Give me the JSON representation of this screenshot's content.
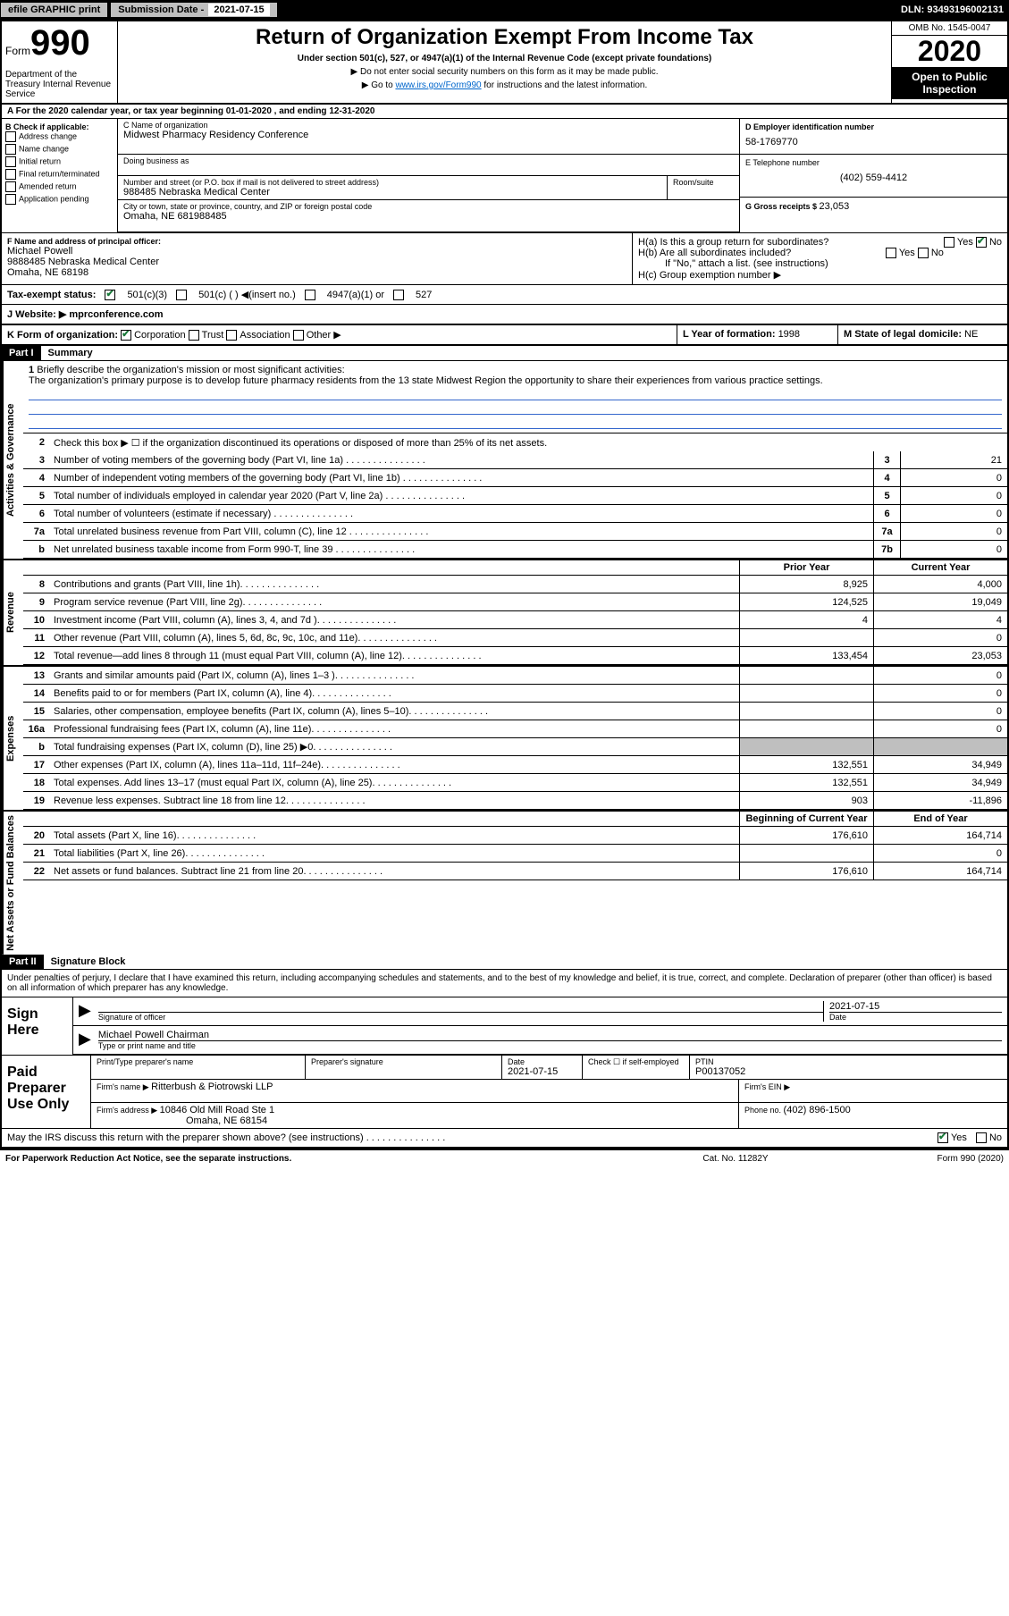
{
  "topbar": {
    "efile": "efile GRAPHIC print",
    "subdate_label": "Submission Date - ",
    "subdate": "2021-07-15",
    "dln": "DLN: 93493196002131"
  },
  "header": {
    "form_word": "Form",
    "form_num": "990",
    "dept": "Department of the Treasury\nInternal Revenue Service",
    "title": "Return of Organization Exempt From Income Tax",
    "sub": "Under section 501(c), 527, or 4947(a)(1) of the Internal Revenue Code (except private foundations)",
    "note1": "▶ Do not enter social security numbers on this form as it may be made public.",
    "note2_pre": "▶ Go to ",
    "note2_link": "www.irs.gov/Form990",
    "note2_post": " for instructions and the latest information.",
    "omb": "OMB No. 1545-0047",
    "year": "2020",
    "otp": "Open to Public Inspection"
  },
  "period": "A For the 2020 calendar year, or tax year beginning 01-01-2020    , and ending 12-31-2020",
  "colB": {
    "label": "B Check if applicable:",
    "items": [
      "Address change",
      "Name change",
      "Initial return",
      "Final return/terminated",
      "Amended return",
      "Application pending"
    ]
  },
  "org": {
    "name_label": "C Name of organization",
    "name": "Midwest Pharmacy Residency Conference",
    "dba_label": "Doing business as",
    "addr_label": "Number and street (or P.O. box if mail is not delivered to street address)",
    "addr": "988485 Nebraska Medical Center",
    "suite_label": "Room/suite",
    "city_label": "City or town, state or province, country, and ZIP or foreign postal code",
    "city": "Omaha, NE  681988485"
  },
  "right": {
    "ein_label": "D Employer identification number",
    "ein": "58-1769770",
    "tel_label": "E Telephone number",
    "tel": "(402) 559-4412",
    "gross_label": "G Gross receipts $ ",
    "gross": "23,053"
  },
  "officer": {
    "label": "F  Name and address of principal officer:",
    "name": "Michael Powell",
    "addr1": "9888485 Nebraska Medical Center",
    "addr2": "Omaha, NE  68198"
  },
  "h": {
    "ha": "H(a)  Is this a group return for subordinates?",
    "hb": "H(b)  Are all subordinates included?",
    "hb_note": "If \"No,\" attach a list. (see instructions)",
    "hc": "H(c)  Group exemption number ▶"
  },
  "tax": {
    "label": "Tax-exempt status:",
    "c3": "501(c)(3)",
    "c": "501(c) (  ) ◀(insert no.)",
    "a1": "4947(a)(1) or",
    "s527": "527"
  },
  "website": {
    "label": "J   Website: ▶  ",
    "url": "mprconference.com"
  },
  "klm": {
    "k": "K Form of organization:",
    "k_corp": "Corporation",
    "k_trust": "Trust",
    "k_assoc": "Association",
    "k_other": "Other ▶",
    "l_label": "L Year of formation: ",
    "l": "1998",
    "m_label": "M State of legal domicile: ",
    "m": "NE"
  },
  "part1": {
    "num": "Part I",
    "title": "Summary"
  },
  "mission": {
    "num": "1",
    "label": "Briefly describe the organization's mission or most significant activities:",
    "text": "The organization's primary purpose is to develop future pharmacy residents from the 13 state Midwest Region the opportunity to share their experiences from various practice settings."
  },
  "line2": {
    "num": "2",
    "desc": "Check this box ▶ ☐  if the organization discontinued its operations or disposed of more than 25% of its net assets."
  },
  "gov_lines": [
    {
      "num": "3",
      "desc": "Number of voting members of the governing body (Part VI, line 1a)",
      "box": "3",
      "val": "21"
    },
    {
      "num": "4",
      "desc": "Number of independent voting members of the governing body (Part VI, line 1b)",
      "box": "4",
      "val": "0"
    },
    {
      "num": "5",
      "desc": "Total number of individuals employed in calendar year 2020 (Part V, line 2a)",
      "box": "5",
      "val": "0"
    },
    {
      "num": "6",
      "desc": "Total number of volunteers (estimate if necessary)",
      "box": "6",
      "val": "0"
    },
    {
      "num": "7a",
      "desc": "Total unrelated business revenue from Part VIII, column (C), line 12",
      "box": "7a",
      "val": "0"
    },
    {
      "num": "b",
      "desc": "Net unrelated business taxable income from Form 990-T, line 39",
      "box": "7b",
      "val": "0"
    }
  ],
  "col_hdrs": {
    "prior": "Prior Year",
    "current": "Current Year"
  },
  "sections": [
    {
      "label": "Activities & Governance",
      "type": "gov"
    },
    {
      "label": "Revenue",
      "lines": [
        {
          "num": "8",
          "desc": "Contributions and grants (Part VIII, line 1h)",
          "prior": "8,925",
          "current": "4,000"
        },
        {
          "num": "9",
          "desc": "Program service revenue (Part VIII, line 2g)",
          "prior": "124,525",
          "current": "19,049"
        },
        {
          "num": "10",
          "desc": "Investment income (Part VIII, column (A), lines 3, 4, and 7d )",
          "prior": "4",
          "current": "4"
        },
        {
          "num": "11",
          "desc": "Other revenue (Part VIII, column (A), lines 5, 6d, 8c, 9c, 10c, and 11e)",
          "prior": "",
          "current": "0"
        },
        {
          "num": "12",
          "desc": "Total revenue—add lines 8 through 11 (must equal Part VIII, column (A), line 12)",
          "prior": "133,454",
          "current": "23,053"
        }
      ]
    },
    {
      "label": "Expenses",
      "lines": [
        {
          "num": "13",
          "desc": "Grants and similar amounts paid (Part IX, column (A), lines 1–3 )",
          "prior": "",
          "current": "0"
        },
        {
          "num": "14",
          "desc": "Benefits paid to or for members (Part IX, column (A), line 4)",
          "prior": "",
          "current": "0"
        },
        {
          "num": "15",
          "desc": "Salaries, other compensation, employee benefits (Part IX, column (A), lines 5–10)",
          "prior": "",
          "current": "0"
        },
        {
          "num": "16a",
          "desc": "Professional fundraising fees (Part IX, column (A), line 11e)",
          "prior": "",
          "current": "0"
        },
        {
          "num": "b",
          "desc": "Total fundraising expenses (Part IX, column (D), line 25) ▶0",
          "prior": "GRAY",
          "current": "GRAY"
        },
        {
          "num": "17",
          "desc": "Other expenses (Part IX, column (A), lines 11a–11d, 11f–24e)",
          "prior": "132,551",
          "current": "34,949"
        },
        {
          "num": "18",
          "desc": "Total expenses. Add lines 13–17 (must equal Part IX, column (A), line 25)",
          "prior": "132,551",
          "current": "34,949"
        },
        {
          "num": "19",
          "desc": "Revenue less expenses. Subtract line 18 from line 12",
          "prior": "903",
          "current": "-11,896"
        }
      ]
    },
    {
      "label": "Net Assets or Fund Balances",
      "hdr": {
        "prior": "Beginning of Current Year",
        "current": "End of Year"
      },
      "lines": [
        {
          "num": "20",
          "desc": "Total assets (Part X, line 16)",
          "prior": "176,610",
          "current": "164,714"
        },
        {
          "num": "21",
          "desc": "Total liabilities (Part X, line 26)",
          "prior": "",
          "current": "0"
        },
        {
          "num": "22",
          "desc": "Net assets or fund balances. Subtract line 21 from line 20",
          "prior": "176,610",
          "current": "164,714"
        }
      ]
    }
  ],
  "part2": {
    "num": "Part II",
    "title": "Signature Block"
  },
  "sig": {
    "decl": "Under penalties of perjury, I declare that I have examined this return, including accompanying schedules and statements, and to the best of my knowledge and belief, it is true, correct, and complete. Declaration of preparer (other than officer) is based on all information of which preparer has any knowledge.",
    "sign_here": "Sign Here",
    "sig_label": "Signature of officer",
    "date_label": "Date",
    "date": "2021-07-15",
    "name": "Michael Powell Chairman",
    "name_label": "Type or print name and title"
  },
  "paid": {
    "label": "Paid Preparer Use Only",
    "h1": "Print/Type preparer's name",
    "h2": "Preparer's signature",
    "h3_label": "Date",
    "h3": "2021-07-15",
    "h4": "Check ☐ if self-employed",
    "h5_label": "PTIN",
    "h5": "P00137052",
    "firm_label": "Firm's name      ▶ ",
    "firm": "Ritterbush & Piotrowski LLP",
    "firm_ein_label": "Firm's EIN ▶",
    "firm_addr_label": "Firm's address ▶ ",
    "firm_addr1": "10846 Old Mill Road Ste 1",
    "firm_addr2": "Omaha, NE  68154",
    "phone_label": "Phone no. ",
    "phone": "(402) 896-1500"
  },
  "discuss": {
    "text": "May the IRS discuss this return with the preparer shown above? (see instructions)",
    "yes": "Yes",
    "no": "No"
  },
  "footer": {
    "left": "For Paperwork Reduction Act Notice, see the separate instructions.",
    "mid": "Cat. No. 11282Y",
    "right": "Form 990 (2020)"
  }
}
